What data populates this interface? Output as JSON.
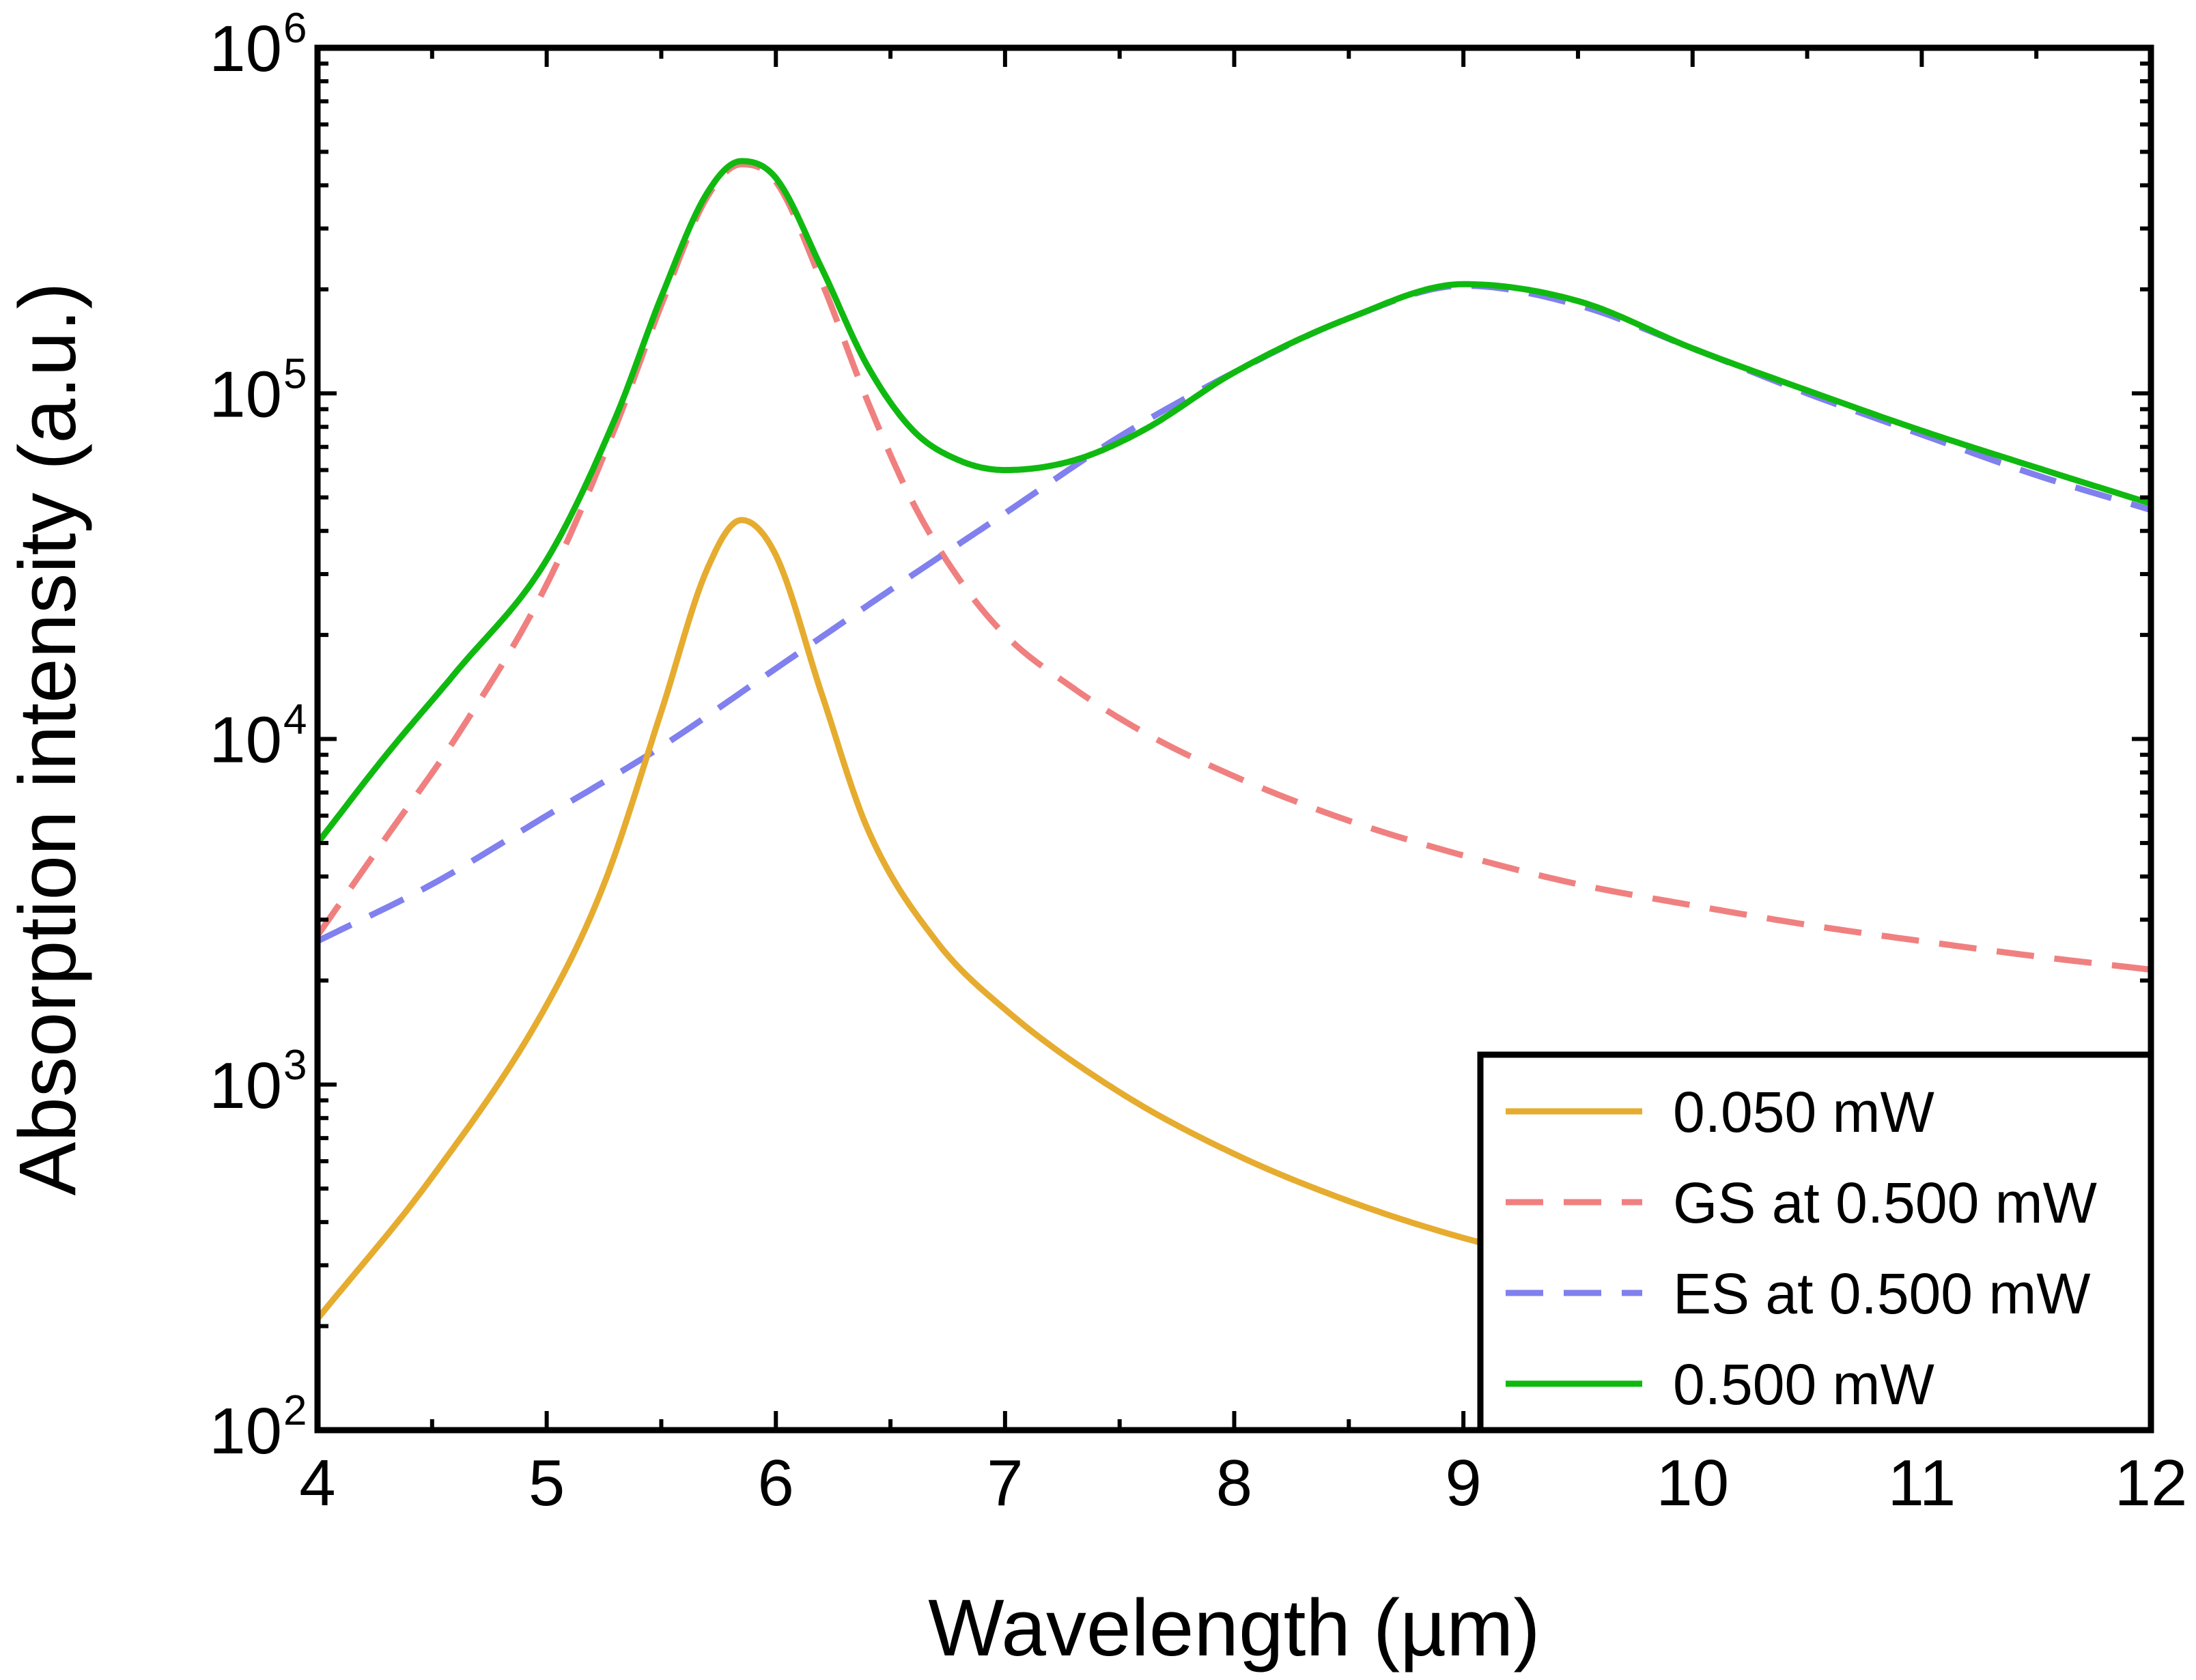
{
  "chart_data": {
    "type": "line",
    "xlabel": "Wavelength (µm)",
    "ylabel": "Absorption intensity (a.u.)",
    "xlim": [
      4,
      12
    ],
    "ylim": [
      100,
      1000000
    ],
    "yscale": "log",
    "grid": false,
    "legend_position": "bottom-right",
    "xticks": [
      "4",
      "5",
      "6",
      "7",
      "8",
      "9",
      "10",
      "11",
      "12"
    ],
    "yticks": [
      {
        "base": "10",
        "exp": "2"
      },
      {
        "base": "10",
        "exp": "3"
      },
      {
        "base": "10",
        "exp": "4"
      },
      {
        "base": "10",
        "exp": "5"
      },
      {
        "base": "10",
        "exp": "6"
      }
    ],
    "series": [
      {
        "name": "0.050 mW",
        "color": "#E6AC2F",
        "style": "solid",
        "x": [
          4.0,
          4.5,
          5.0,
          5.25,
          5.5,
          5.7,
          5.85,
          6.0,
          6.2,
          6.4,
          6.7,
          7.0,
          7.5,
          8.0,
          8.5,
          9.0,
          9.5,
          10.0,
          10.5,
          11.0,
          11.5,
          12.0
        ],
        "y": [
          210,
          540,
          1700,
          3800,
          12000,
          31000,
          43000,
          34000,
          13500,
          5500,
          2600,
          1650,
          950,
          630,
          460,
          360,
          300,
          255,
          225,
          200,
          180,
          165
        ]
      },
      {
        "name": "GS at 0.500 mW",
        "color": "#F08080",
        "style": "dashed",
        "x": [
          4.0,
          4.3,
          4.6,
          5.0,
          5.3,
          5.5,
          5.7,
          5.85,
          6.0,
          6.2,
          6.4,
          6.6,
          6.8,
          7.0,
          7.3,
          7.6,
          8.0,
          8.5,
          9.0,
          9.5,
          10.0,
          10.5,
          11.0,
          11.5,
          12.0
        ],
        "y": [
          2700,
          5200,
          10000,
          28000,
          80000,
          180000,
          370000,
          460000,
          410000,
          210000,
          95000,
          48000,
          29000,
          20000,
          14000,
          10500,
          7800,
          5800,
          4600,
          3800,
          3300,
          2900,
          2600,
          2350,
          2150
        ]
      },
      {
        "name": "ES at 0.500 mW",
        "color": "#8080EE",
        "style": "dashed",
        "x": [
          4.0,
          4.5,
          5.0,
          5.5,
          6.0,
          6.5,
          7.0,
          7.5,
          8.0,
          8.5,
          9.0,
          9.5,
          10.0,
          10.5,
          11.0,
          11.5,
          12.0
        ],
        "y": [
          2600,
          3800,
          6000,
          9500,
          16000,
          27000,
          45000,
          75000,
          115000,
          165000,
          205000,
          180000,
          135000,
          100000,
          76000,
          58000,
          46000
        ]
      },
      {
        "name": "0.500 mW",
        "color": "#10B910",
        "style": "solid",
        "x": [
          4.0,
          4.3,
          4.6,
          5.0,
          5.3,
          5.5,
          5.7,
          5.85,
          6.0,
          6.2,
          6.4,
          6.6,
          6.8,
          7.0,
          7.3,
          7.6,
          8.0,
          8.5,
          9.0,
          9.5,
          10.0,
          10.5,
          11.0,
          11.5,
          12.0
        ],
        "y": [
          5000,
          9000,
          15500,
          33000,
          85000,
          190000,
          380000,
          470000,
          420000,
          230000,
          120000,
          78000,
          64000,
          60000,
          64000,
          78000,
          115000,
          165000,
          207000,
          185000,
          135000,
          102000,
          78000,
          61000,
          48000
        ]
      }
    ]
  }
}
